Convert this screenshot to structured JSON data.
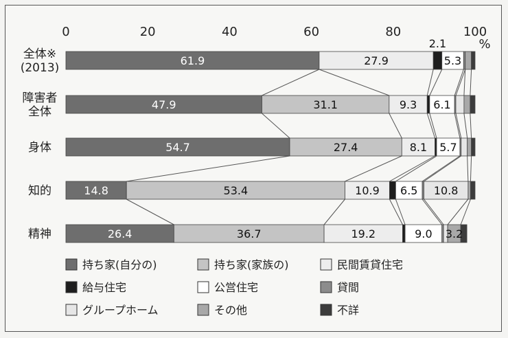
{
  "chart_data": {
    "type": "bar",
    "orientation": "horizontal",
    "stacked": true,
    "x_ticks": [
      "0",
      "20",
      "40",
      "60",
      "80",
      "100"
    ],
    "unit": "%",
    "xlim": [
      0,
      100
    ],
    "categories": [
      {
        "label_lines": [
          "全体※",
          "(2013)"
        ]
      },
      {
        "label_lines": [
          "障害者",
          "全体"
        ]
      },
      {
        "label_lines": [
          "身体"
        ]
      },
      {
        "label_lines": [
          "知的"
        ]
      },
      {
        "label_lines": [
          "精神"
        ]
      }
    ],
    "series": [
      {
        "name": "持ち家(自分の)",
        "color": "#6e6e6e",
        "values": [
          61.9,
          47.9,
          54.7,
          14.8,
          26.4
        ],
        "labels": [
          "61.9",
          "47.9",
          "54.7",
          "14.8",
          "26.4"
        ]
      },
      {
        "name": "持ち家(家族の)",
        "color": "#c4c4c4",
        "values": [
          0,
          31.1,
          27.4,
          53.4,
          36.7
        ],
        "labels": [
          "",
          "31.1",
          "27.4",
          "53.4",
          "36.7"
        ]
      },
      {
        "name": "民間賃貸住宅",
        "color": "#ededed",
        "values": [
          27.9,
          9.3,
          8.1,
          10.9,
          19.2
        ],
        "labels": [
          "27.9",
          "9.3",
          "8.1",
          "10.9",
          "19.2"
        ]
      },
      {
        "name": "給与住宅",
        "color": "#1e1e1e",
        "values": [
          2.1,
          0.6,
          0.4,
          1.5,
          0.6
        ],
        "labels": [
          "2.1",
          "",
          "",
          "",
          ""
        ]
      },
      {
        "name": "公営住宅",
        "color": "#ffffff",
        "values": [
          5.3,
          6.1,
          5.7,
          6.5,
          9.0
        ],
        "labels": [
          "5.3",
          "6.1",
          "5.7",
          "6.5",
          "9.0"
        ]
      },
      {
        "name": "貸間",
        "color": "#8c8c8c",
        "values": [
          0.4,
          0.3,
          0.3,
          0.4,
          0.4
        ],
        "labels": [
          "",
          "",
          "",
          "",
          ""
        ]
      },
      {
        "name": "グループホーム",
        "color": "#e6e6e6",
        "values": [
          0,
          2.0,
          1.5,
          10.8,
          1.0
        ],
        "labels": [
          "",
          "",
          "",
          "10.8",
          ""
        ]
      },
      {
        "name": "その他",
        "color": "#a8a8a8",
        "values": [
          1.5,
          1.5,
          1.0,
          0.6,
          3.2
        ],
        "labels": [
          "",
          "",
          "",
          "",
          "3.2"
        ]
      },
      {
        "name": "不詳",
        "color": "#3c3c3c",
        "values": [
          0.9,
          1.2,
          0.9,
          1.1,
          1.5
        ],
        "labels": [
          "",
          "",
          "",
          "",
          ""
        ]
      }
    ],
    "legend": {
      "placement": "bottom",
      "order": [
        "持ち家(自分の)",
        "持ち家(家族の)",
        "民間賃貸住宅",
        "給与住宅",
        "公営住宅",
        "貸間",
        "グループホーム",
        "その他",
        "不詳"
      ]
    }
  }
}
